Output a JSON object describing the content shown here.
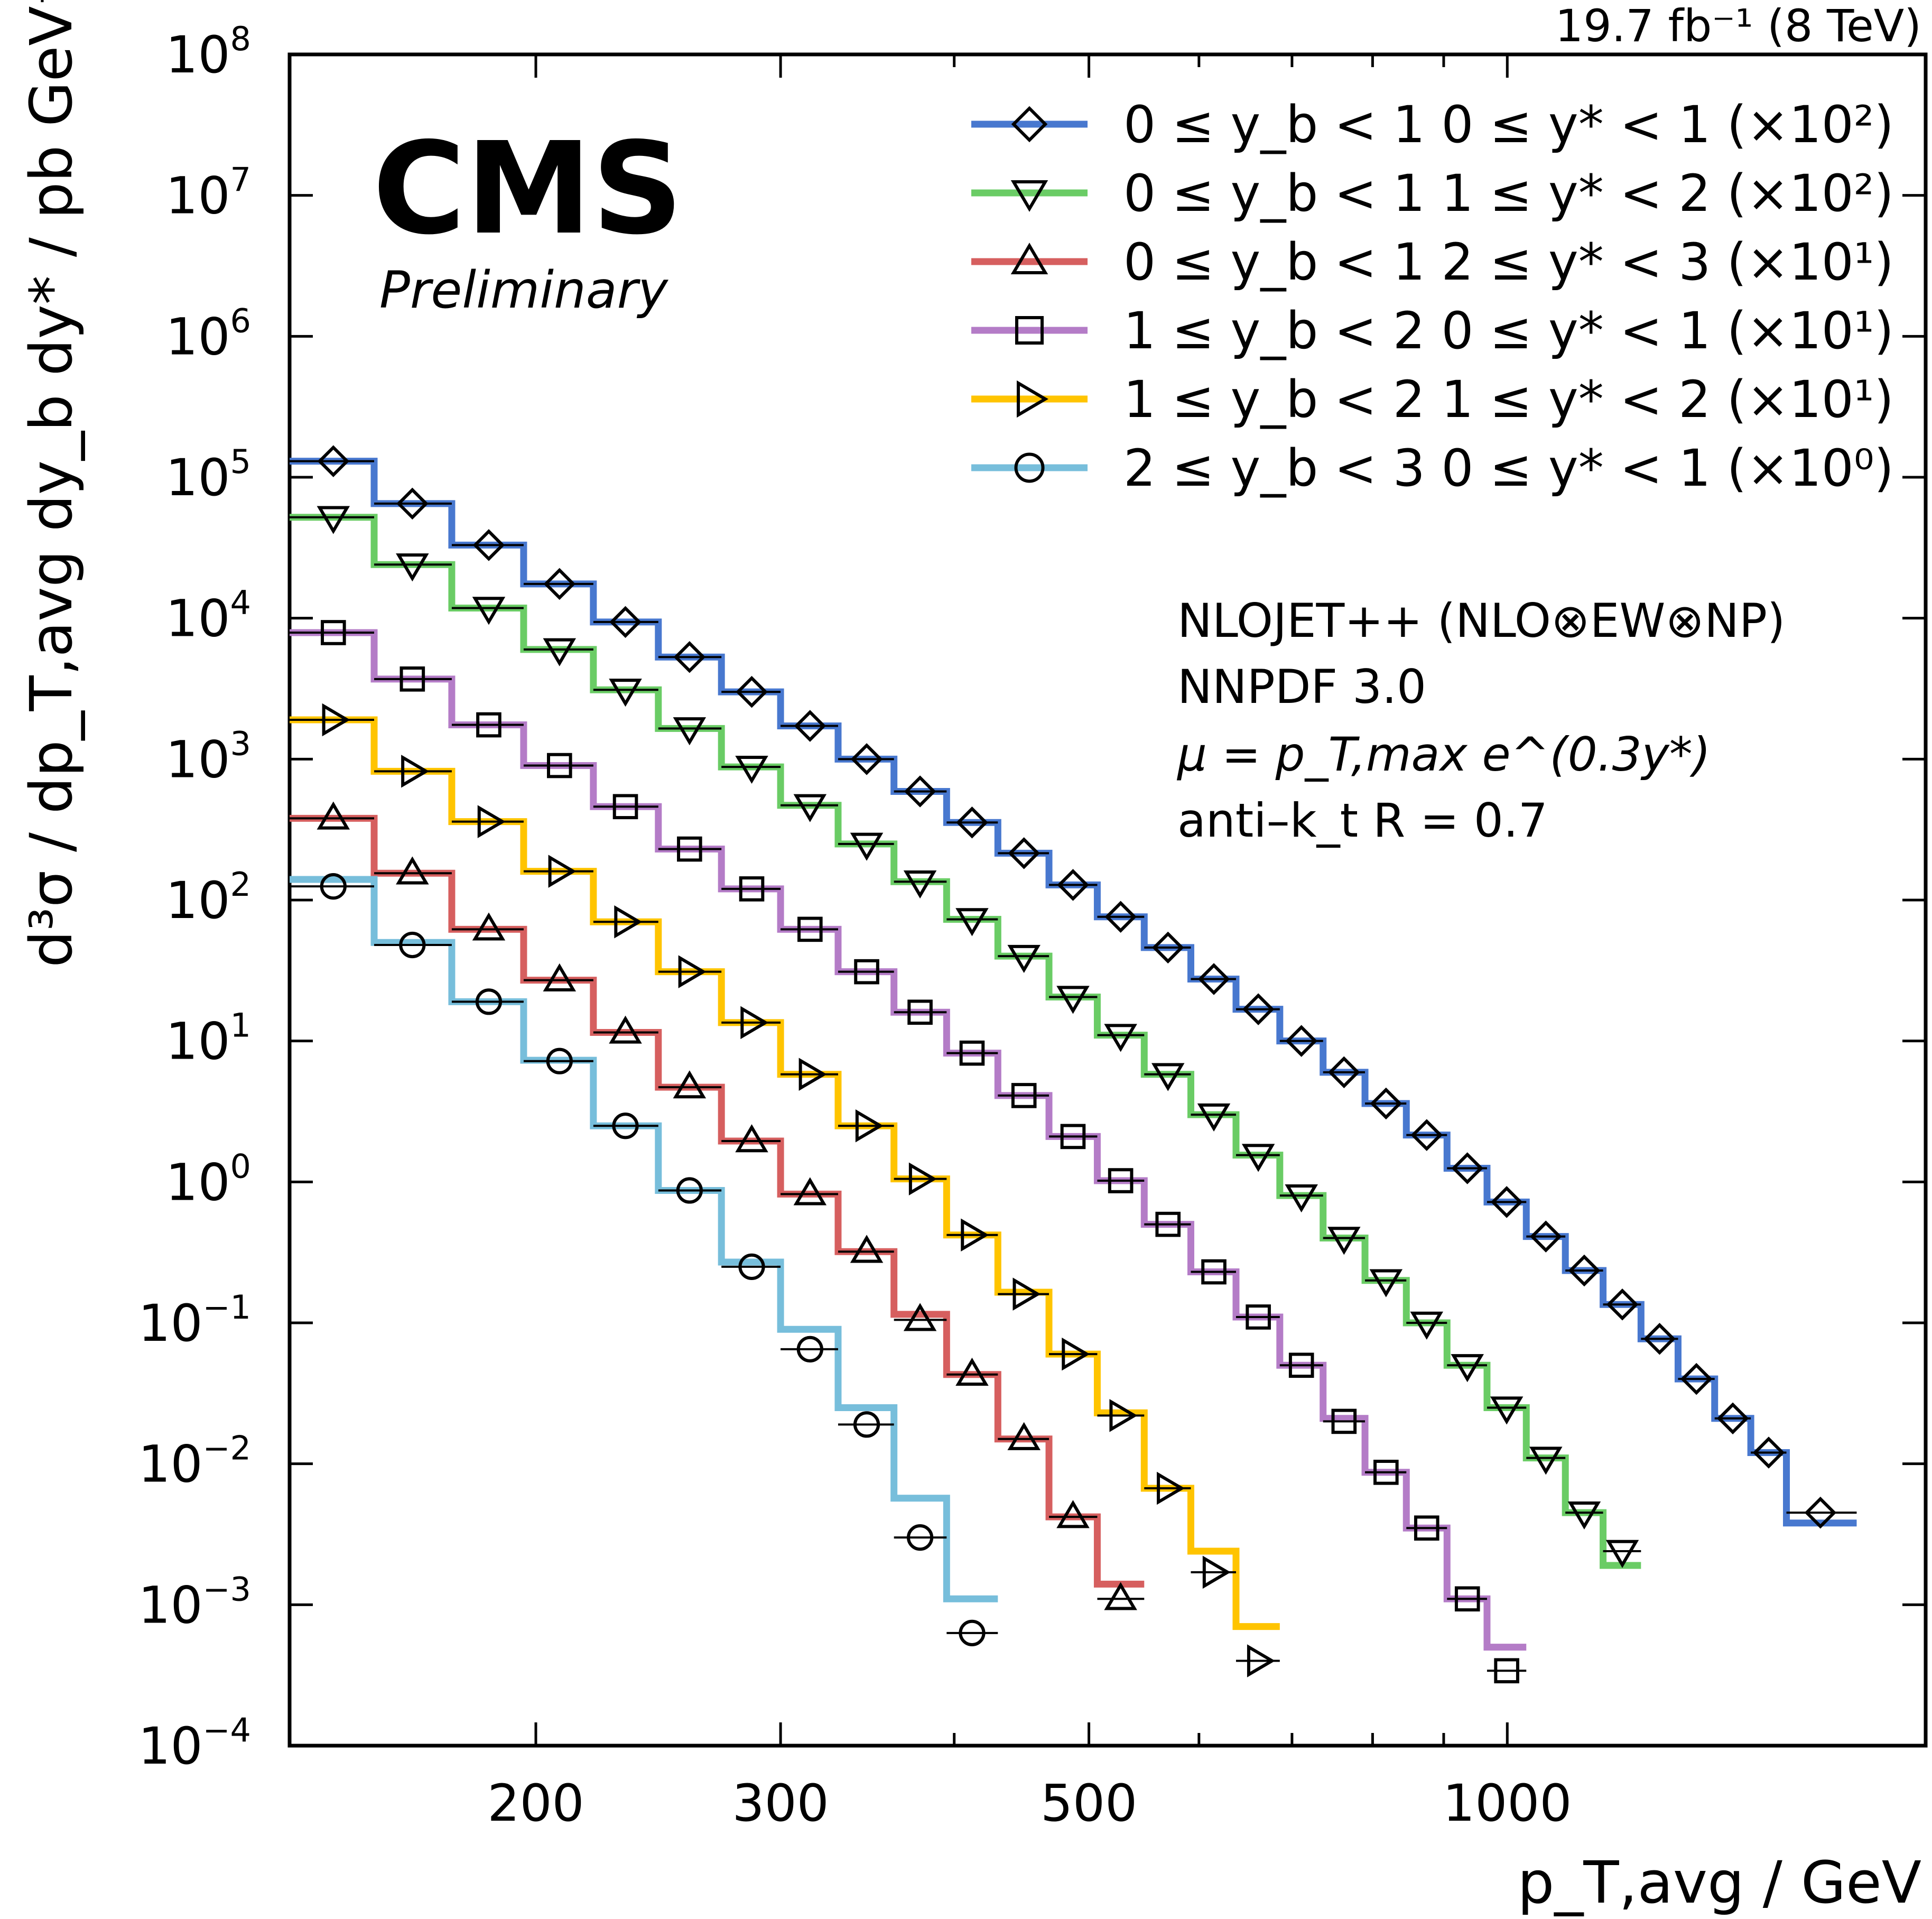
{
  "header": {
    "lumi": "19.7 fb⁻¹ (8 TeV)",
    "experiment": "CMS",
    "status": "Preliminary"
  },
  "annotations": [
    "NLOJET++ (NLO⊗EW⊗NP)",
    "NNPDF 3.0",
    "μ = p_T,max e^(0.3y*)",
    "anti–k_t R = 0.7"
  ],
  "chart_data": {
    "type": "line",
    "xlabel": "p_T,avg / GeV",
    "ylabel": "d³σ / dp_T,avg dy_b dy* / pb GeV⁻¹",
    "xscale": "log",
    "yscale": "log",
    "xlim": [
      133,
      2000
    ],
    "ylim": [
      0.0001,
      100000000
    ],
    "xticks": [
      {
        "value": 200,
        "label": "200"
      },
      {
        "value": 300,
        "label": "300"
      },
      {
        "value": 500,
        "label": "500"
      },
      {
        "value": 1000,
        "label": "1000"
      }
    ],
    "yticks": [
      {
        "value": 100000000,
        "base": "10",
        "exp": "8"
      },
      {
        "value": 10000000,
        "base": "10",
        "exp": "7"
      },
      {
        "value": 1000000,
        "base": "10",
        "exp": "6"
      },
      {
        "value": 100000,
        "base": "10",
        "exp": "5"
      },
      {
        "value": 10000,
        "base": "10",
        "exp": "4"
      },
      {
        "value": 1000,
        "base": "10",
        "exp": "3"
      },
      {
        "value": 100,
        "base": "10",
        "exp": "2"
      },
      {
        "value": 10,
        "base": "10",
        "exp": "1"
      },
      {
        "value": 1,
        "base": "10",
        "exp": "0"
      },
      {
        "value": 0.1,
        "base": "10",
        "exp": "−1"
      },
      {
        "value": 0.01,
        "base": "10",
        "exp": "−2"
      },
      {
        "value": 0.001,
        "base": "10",
        "exp": "−3"
      },
      {
        "value": 0.0001,
        "base": "10",
        "exp": "−4"
      }
    ],
    "legend_position": "top-right",
    "grid": false,
    "series": [
      {
        "name": "0 ≤ y_b < 1  0 ≤ y* < 1 (×10²)",
        "color": "#4878cf",
        "marker": "diamond",
        "bin_edges": [
          133,
          153,
          174,
          196,
          220,
          245,
          272,
          300,
          330,
          362,
          395,
          430,
          468,
          507,
          548,
          592,
          638,
          686,
          737,
          790,
          846,
          905,
          967,
          1032,
          1101,
          1172,
          1248,
          1327,
          1410,
          1497,
          1588,
          1784,
          2000
        ],
        "theory": [
          130000,
          65000,
          33000,
          17500,
          9400,
          5300,
          3000,
          1720,
          1000,
          590,
          355,
          215,
          128,
          76,
          46,
          27.5,
          16.8,
          10,
          6,
          3.6,
          2.15,
          1.25,
          0.72,
          0.41,
          0.235,
          0.135,
          0.077,
          0.04,
          0.021,
          0.012,
          0.0038
        ],
        "data_x": [
          143,
          163,
          185,
          208,
          232,
          258,
          286,
          315,
          346,
          378,
          412,
          449,
          487,
          527,
          570,
          615,
          662,
          711,
          763,
          818,
          875,
          936,
          999,
          1066,
          1136,
          1210,
          1287,
          1368,
          1453,
          1542,
          1680
        ],
        "data_y": [
          130000,
          65000,
          33000,
          17500,
          9400,
          5300,
          3000,
          1720,
          1000,
          590,
          355,
          215,
          128,
          76,
          46,
          27.5,
          16.8,
          10,
          6,
          3.6,
          2.15,
          1.25,
          0.72,
          0.41,
          0.235,
          0.135,
          0.077,
          0.04,
          0.021,
          0.012,
          0.0045
        ]
      },
      {
        "name": "0 ≤ y_b < 1  1 ≤ y* < 2 (×10²)",
        "color": "#6acc65",
        "marker": "triangle-down",
        "bin_edges": [
          133,
          153,
          174,
          196,
          220,
          245,
          272,
          300,
          330,
          362,
          395,
          430,
          468,
          507,
          548,
          592,
          638,
          686,
          737,
          790,
          846,
          905,
          967,
          1032,
          1101,
          1172,
          1248
        ],
        "theory": [
          52000,
          24000,
          11800,
          6000,
          3100,
          1650,
          880,
          470,
          250,
          135,
          73,
          40,
          20.5,
          11,
          5.8,
          3,
          1.55,
          0.8,
          0.4,
          0.2,
          0.1,
          0.05,
          0.025,
          0.011,
          0.0045,
          0.0019
        ],
        "data_x": [
          143,
          163,
          185,
          208,
          232,
          258,
          286,
          315,
          346,
          378,
          412,
          449,
          487,
          527,
          570,
          615,
          662,
          711,
          763,
          818,
          875,
          936,
          999,
          1066,
          1136,
          1210
        ],
        "data_y": [
          52000,
          24000,
          11800,
          6000,
          3100,
          1650,
          880,
          470,
          250,
          135,
          73,
          40,
          20.5,
          11,
          5.8,
          3,
          1.55,
          0.8,
          0.4,
          0.2,
          0.1,
          0.05,
          0.025,
          0.011,
          0.0045,
          0.0024
        ]
      },
      {
        "name": "0 ≤ y_b < 1  2 ≤ y* < 3 (×10¹)",
        "color": "#d65f5f",
        "marker": "triangle-up",
        "bin_edges": [
          133,
          153,
          174,
          196,
          220,
          245,
          272,
          300,
          330,
          362,
          395,
          430,
          468,
          507,
          548
        ],
        "theory": [
          380,
          155,
          62,
          27,
          11.5,
          4.7,
          1.95,
          0.82,
          0.32,
          0.115,
          0.043,
          0.015,
          0.0042,
          0.0014
        ],
        "data_x": [
          143,
          163,
          185,
          208,
          232,
          258,
          286,
          315,
          346,
          378,
          412,
          449,
          487,
          527
        ],
        "data_y": [
          380,
          155,
          62,
          27,
          11.5,
          4.7,
          1.95,
          0.82,
          0.32,
          0.105,
          0.043,
          0.015,
          0.0042,
          0.0011
        ]
      },
      {
        "name": "1 ≤ y_b < 2  0 ≤ y* < 1 (×10¹)",
        "color": "#b47cc7",
        "marker": "square",
        "bin_edges": [
          133,
          153,
          174,
          196,
          220,
          245,
          272,
          300,
          330,
          362,
          395,
          430,
          468,
          507,
          548,
          592,
          638,
          686,
          737,
          790,
          846,
          905,
          967,
          1032
        ],
        "theory": [
          7900,
          3700,
          1750,
          900,
          460,
          230,
          120,
          62,
          31,
          16,
          8.2,
          4.1,
          2.1,
          1.02,
          0.5,
          0.23,
          0.11,
          0.05,
          0.021,
          0.0087,
          0.0035,
          0.0011,
          0.0005
        ],
        "data_x": [
          143,
          163,
          185,
          208,
          232,
          258,
          286,
          315,
          346,
          378,
          412,
          449,
          487,
          527,
          570,
          615,
          662,
          711,
          763,
          818,
          875,
          936,
          999
        ],
        "data_y": [
          7900,
          3700,
          1750,
          900,
          460,
          230,
          120,
          62,
          31,
          16,
          8.2,
          4.1,
          2.1,
          1.02,
          0.5,
          0.23,
          0.11,
          0.05,
          0.02,
          0.0087,
          0.0035,
          0.0011,
          0.00034
        ]
      },
      {
        "name": "1 ≤ y_b < 2  1 ≤ y* < 2 (×10¹)",
        "color": "#ffc400",
        "marker": "triangle-right",
        "bin_edges": [
          133,
          153,
          174,
          196,
          220,
          245,
          272,
          300,
          330,
          362,
          395,
          430,
          468,
          507,
          548,
          592,
          638,
          686
        ],
        "theory": [
          1900,
          820,
          360,
          160,
          70,
          31,
          13.5,
          5.8,
          2.5,
          1.05,
          0.42,
          0.165,
          0.06,
          0.023,
          0.0067,
          0.0024,
          0.0007
        ],
        "data_x": [
          143,
          163,
          185,
          208,
          232,
          258,
          286,
          315,
          346,
          378,
          412,
          449,
          487,
          527,
          570,
          615,
          662
        ],
        "data_y": [
          1900,
          820,
          360,
          160,
          70,
          31,
          13.5,
          5.8,
          2.5,
          1.05,
          0.42,
          0.16,
          0.06,
          0.022,
          0.0067,
          0.0017,
          0.0004
        ]
      },
      {
        "name": "2 ≤ y_b < 3  0 ≤ y* < 1 (×10⁰)",
        "color": "#77bedb",
        "marker": "circle",
        "bin_edges": [
          133,
          153,
          174,
          196,
          220,
          245,
          272,
          300,
          330,
          362,
          395,
          430
        ],
        "theory": [
          140,
          50,
          19,
          7.3,
          2.5,
          0.87,
          0.27,
          0.09,
          0.025,
          0.0057,
          0.0011
        ],
        "data_x": [
          143,
          163,
          185,
          208,
          232,
          258,
          286,
          315,
          346,
          378,
          412
        ],
        "data_y": [
          125,
          48,
          19,
          7.2,
          2.5,
          0.87,
          0.25,
          0.065,
          0.019,
          0.003,
          0.00063
        ]
      }
    ]
  }
}
